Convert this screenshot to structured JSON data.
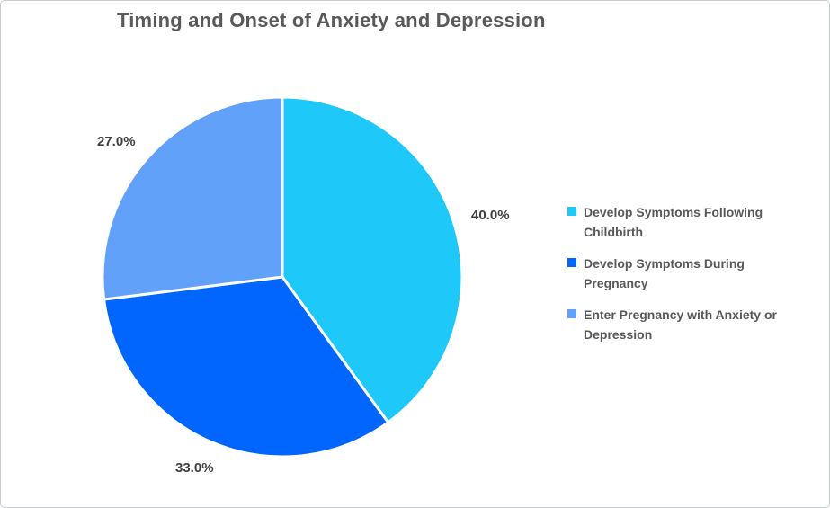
{
  "window": {
    "background_color": "#ffffff",
    "border_color": "#c9cccd"
  },
  "chart_data": {
    "type": "pie",
    "title": "Timing and Onset of Anxiety and Depression",
    "categories": [
      "Develop Symptoms Following Childbirth",
      "Develop Symptoms During Pregnancy",
      "Enter Pregnancy with Anxiety or Depression"
    ],
    "values": [
      40.0,
      33.0,
      27.0
    ],
    "slices": [
      {
        "label": "Develop Symptoms Following Childbirth",
        "value": 40.0,
        "display": "40.0%",
        "color": "#1EC8F8"
      },
      {
        "label": "Develop Symptoms During Pregnancy",
        "value": 33.0,
        "display": "33.0%",
        "color": "#0066FE"
      },
      {
        "label": "Enter Pregnancy with Anxiety or Depression",
        "value": 27.0,
        "display": "27.0%",
        "color": "#61A1FA"
      }
    ],
    "start_angle_deg": 0,
    "direction": "clockwise",
    "legend_position": "right",
    "data_labels": "percentage_outside",
    "slice_separator_color": "#ffffff",
    "title_color": "#595959",
    "label_color": "#404040",
    "legend_text_color": "#595959"
  }
}
